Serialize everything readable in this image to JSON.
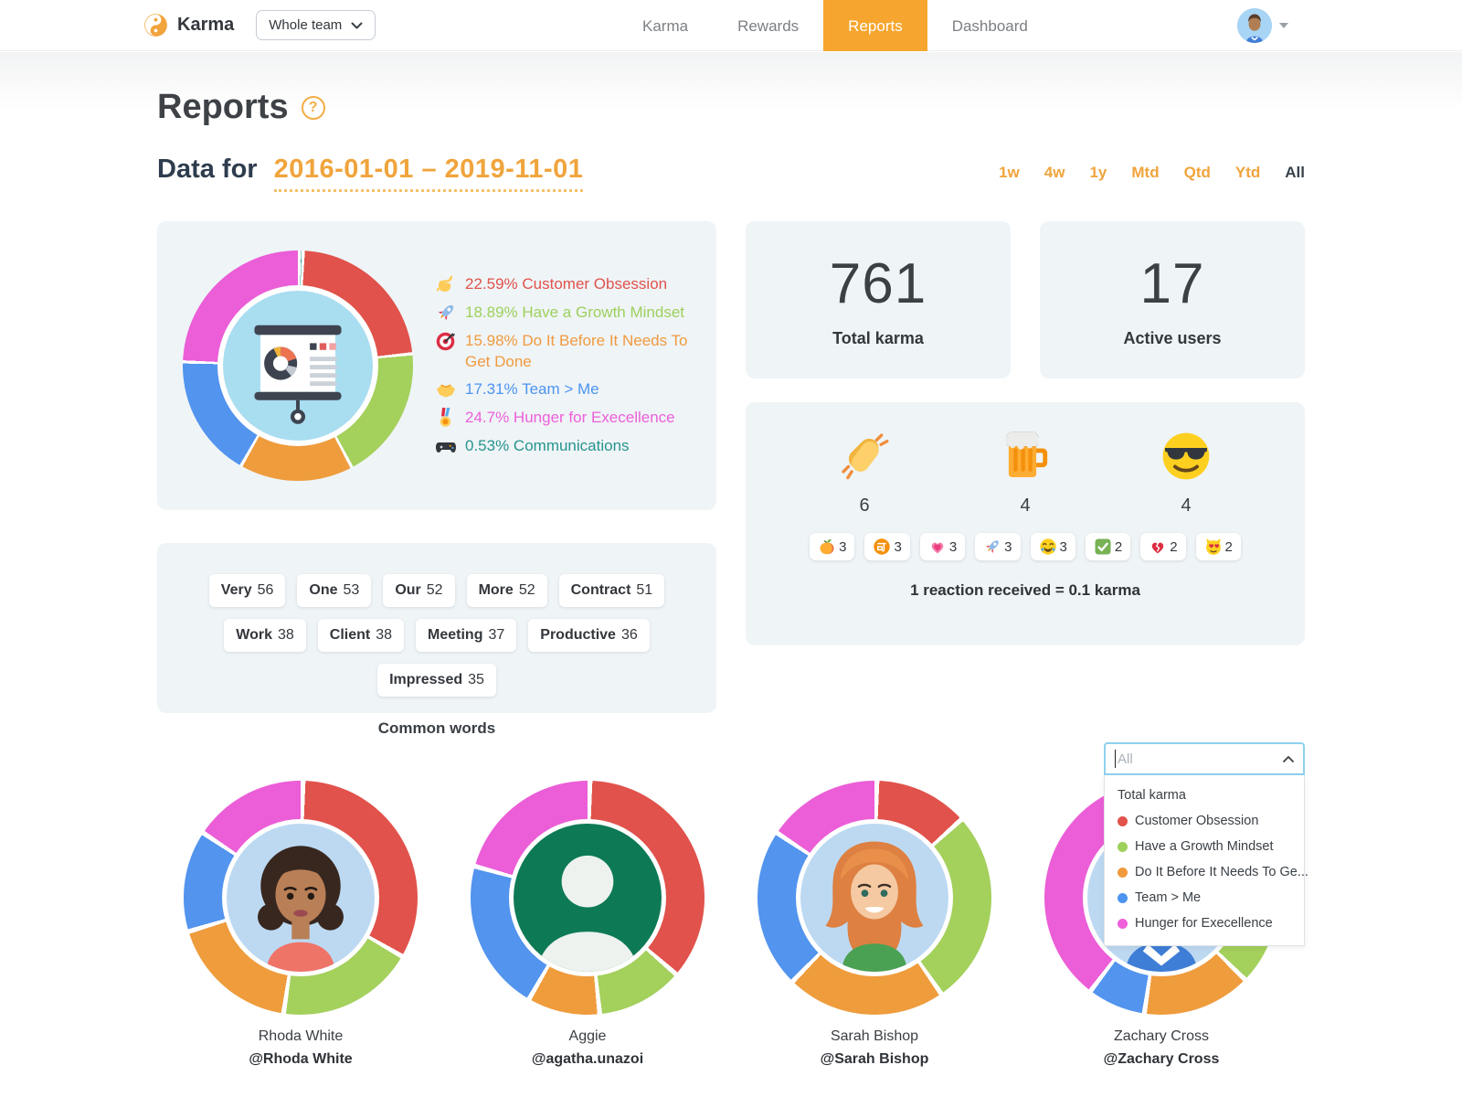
{
  "header": {
    "logo_text": "Karma",
    "team_selector_value": "Whole team",
    "nav": [
      {
        "label": "Karma",
        "active": false
      },
      {
        "label": "Rewards",
        "active": false
      },
      {
        "label": "Reports",
        "active": true
      },
      {
        "label": "Dashboard",
        "active": false
      }
    ]
  },
  "page": {
    "title": "Reports",
    "help_glyph": "?"
  },
  "date_filter": {
    "label": "Data for",
    "range": "2016-01-01 – 2019-11-01",
    "presets": [
      "1w",
      "4w",
      "1y",
      "Mtd",
      "Qtd",
      "Ytd",
      "All"
    ],
    "active_preset": "All"
  },
  "values_legend": [
    {
      "icon": "call-me-hand-icon",
      "percent": "22.59%",
      "label": "Customer Obsession",
      "color": "#e0524b"
    },
    {
      "icon": "rocket-icon",
      "percent": "18.89%",
      "label": "Have a Growth Mindset",
      "color": "#9ed05c"
    },
    {
      "icon": "dart-icon",
      "percent": "15.98%",
      "label": "Do It Before It Needs To Get Done",
      "color": "#f09a3e"
    },
    {
      "icon": "handshake-icon",
      "percent": "17.31%",
      "label": "Team > Me",
      "color": "#4d94f0"
    },
    {
      "icon": "medal-icon",
      "percent": "24.7%",
      "label": "Hunger for Execellence",
      "color": "#ee5fd9"
    },
    {
      "icon": "controller-icon",
      "percent": "0.53%",
      "label": "Communications",
      "color": "#27948e"
    }
  ],
  "stats": {
    "total_karma": {
      "value": "761",
      "label": "Total karma"
    },
    "active_users": {
      "value": "17",
      "label": "Active users"
    }
  },
  "reactions": {
    "top": [
      {
        "icon": "clap-icon",
        "emoji": "👏",
        "count": "6"
      },
      {
        "icon": "beer-icon",
        "emoji": "🍺",
        "count": "4"
      },
      {
        "icon": "sunglasses-icon",
        "emoji": "😎",
        "count": "4"
      }
    ],
    "small": [
      {
        "icon": "peach-icon",
        "emoji": "🍑",
        "count": "3"
      },
      {
        "icon": "accept-icon",
        "emoji": "🉑",
        "count": "3"
      },
      {
        "icon": "heart-icon",
        "emoji": "💗",
        "count": "3"
      },
      {
        "icon": "rocket-icon",
        "emoji": "🚀",
        "count": "3"
      },
      {
        "icon": "laugh-icon",
        "emoji": "😂",
        "count": "3"
      },
      {
        "icon": "check-icon",
        "emoji": "✅",
        "count": "2"
      },
      {
        "icon": "broken-heart-icon",
        "emoji": "💔",
        "count": "2"
      },
      {
        "icon": "heart-eyes-cat-icon",
        "emoji": "😻",
        "count": "2"
      }
    ],
    "note": "1 reaction received = 0.1 karma"
  },
  "common_words": {
    "label": "Common words",
    "words": [
      {
        "word": "Very",
        "count": "56"
      },
      {
        "word": "One",
        "count": "53"
      },
      {
        "word": "Our",
        "count": "52"
      },
      {
        "word": "More",
        "count": "52"
      },
      {
        "word": "Contract",
        "count": "51"
      },
      {
        "word": "Work",
        "count": "38"
      },
      {
        "word": "Client",
        "count": "38"
      },
      {
        "word": "Meeting",
        "count": "37"
      },
      {
        "word": "Productive",
        "count": "36"
      },
      {
        "word": "Impressed",
        "count": "35"
      }
    ]
  },
  "filter_dropdown": {
    "placeholder": "All",
    "options": [
      {
        "label": "Total karma",
        "color": null
      },
      {
        "label": "Customer Obsession",
        "color": "#e0524b"
      },
      {
        "label": "Have a Growth Mindset",
        "color": "#9ed05c"
      },
      {
        "label": "Do It Before It Needs To Ge...",
        "color": "#f09a3e"
      },
      {
        "label": "Team > Me",
        "color": "#4d94f0"
      },
      {
        "label": "Hunger for Execellence",
        "color": "#ee5fd9"
      }
    ]
  },
  "people": [
    {
      "name": "Rhoda White",
      "handle": "@Rhoda White",
      "avatar": "rhoda"
    },
    {
      "name": "Aggie",
      "handle": "@agatha.unazoi",
      "avatar": "aggie"
    },
    {
      "name": "Sarah Bishop",
      "handle": "@Sarah Bishop",
      "avatar": "sarah"
    },
    {
      "name": "Zachary Cross",
      "handle": "@Zachary Cross",
      "avatar": "zachary"
    }
  ],
  "chart_data": [
    {
      "type": "donut",
      "name": "team-values-donut",
      "title": "Karma distribution by company value",
      "categories": [
        "Communications",
        "Customer Obsession",
        "Have a Growth Mindset",
        "Do It Before It Needs To Get Done",
        "Team > Me",
        "Hunger for Execellence"
      ],
      "values": [
        0.53,
        22.59,
        18.89,
        15.98,
        17.31,
        24.7
      ],
      "colors": [
        "#27948e",
        "#e0524b",
        "#a4d05c",
        "#ef9c3d",
        "#5294ee",
        "#eb5ed7"
      ],
      "legend_position": "right",
      "start_angle_deg": 0
    },
    {
      "type": "donut",
      "name": "person-donut-rhoda-white",
      "person": "Rhoda White",
      "categories": [
        "Customer Obsession",
        "Have a Growth Mindset",
        "Do It Before It Needs To Get Done",
        "Team > Me",
        "Hunger for Execellence"
      ],
      "values": [
        33,
        19,
        18,
        14,
        16
      ],
      "colors": [
        "#e0524b",
        "#a4d05c",
        "#ef9c3d",
        "#5294ee",
        "#eb5ed7"
      ]
    },
    {
      "type": "donut",
      "name": "person-donut-aggie",
      "person": "Aggie",
      "categories": [
        "Customer Obsession",
        "Have a Growth Mindset",
        "Do It Before It Needs To Get Done",
        "Team > Me",
        "Hunger for Execellence"
      ],
      "values": [
        36,
        12,
        10,
        21,
        21
      ],
      "colors": [
        "#e0524b",
        "#a4d05c",
        "#ef9c3d",
        "#5294ee",
        "#eb5ed7"
      ]
    },
    {
      "type": "donut",
      "name": "person-donut-sarah-bishop",
      "person": "Sarah Bishop",
      "categories": [
        "Customer Obsession",
        "Have a Growth Mindset",
        "Do It Before It Needs To Get Done",
        "Team > Me",
        "Hunger for Execellence"
      ],
      "values": [
        13,
        27,
        22,
        22,
        16
      ],
      "colors": [
        "#e0524b",
        "#a4d05c",
        "#ef9c3d",
        "#5294ee",
        "#eb5ed7"
      ]
    },
    {
      "type": "donut",
      "name": "person-donut-zachary-cross",
      "person": "Zachary Cross",
      "categories": [
        "Customer Obsession",
        "Have a Growth Mindset",
        "Do It Before It Needs To Get Done",
        "Team > Me",
        "Hunger for Execellence"
      ],
      "values": [
        25,
        12,
        15,
        8,
        40
      ],
      "colors": [
        "#e0524b",
        "#a4d05c",
        "#ef9c3d",
        "#5294ee",
        "#eb5ed7"
      ]
    }
  ]
}
